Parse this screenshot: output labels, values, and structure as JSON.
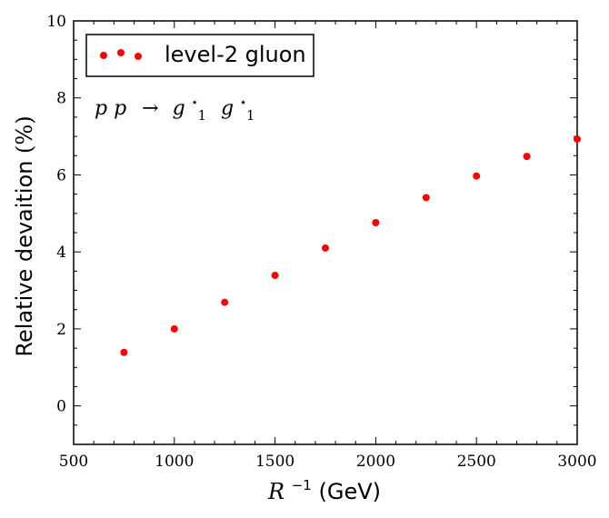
{
  "chart_data": {
    "type": "scatter",
    "title": "",
    "xlabel": "R⁻¹ (GeV)",
    "xlabel_parts": {
      "symbol": "R",
      "exponent": "−1",
      "unit": "(GeV)"
    },
    "ylabel": "Relative devaition (%)",
    "ylabel_parts": {
      "text": "Relative devaition",
      "unit": "(%)"
    },
    "xlim": [
      500,
      3000
    ],
    "ylim": [
      -1,
      10
    ],
    "xticks": [
      500,
      1000,
      1500,
      2000,
      2500,
      3000
    ],
    "yticks": [
      0,
      2,
      4,
      6,
      8,
      10
    ],
    "series": [
      {
        "name": "level-2 gluon",
        "color": "#ff0000",
        "marker": "circle",
        "x": [
          750,
          1000,
          1250,
          1500,
          1750,
          2000,
          2250,
          2500,
          2750,
          3000
        ],
        "y": [
          1.39,
          2.0,
          2.69,
          3.39,
          4.1,
          4.76,
          5.41,
          5.97,
          6.48,
          6.93
        ]
      }
    ],
    "legend": {
      "entries": [
        "level-2 gluon"
      ],
      "location": "top-left"
    },
    "annotation": {
      "process_parts": {
        "initial": "p p",
        "arrow": "→",
        "g": "g",
        "sub": "1",
        "sup": "⋆"
      }
    },
    "grid": false
  }
}
